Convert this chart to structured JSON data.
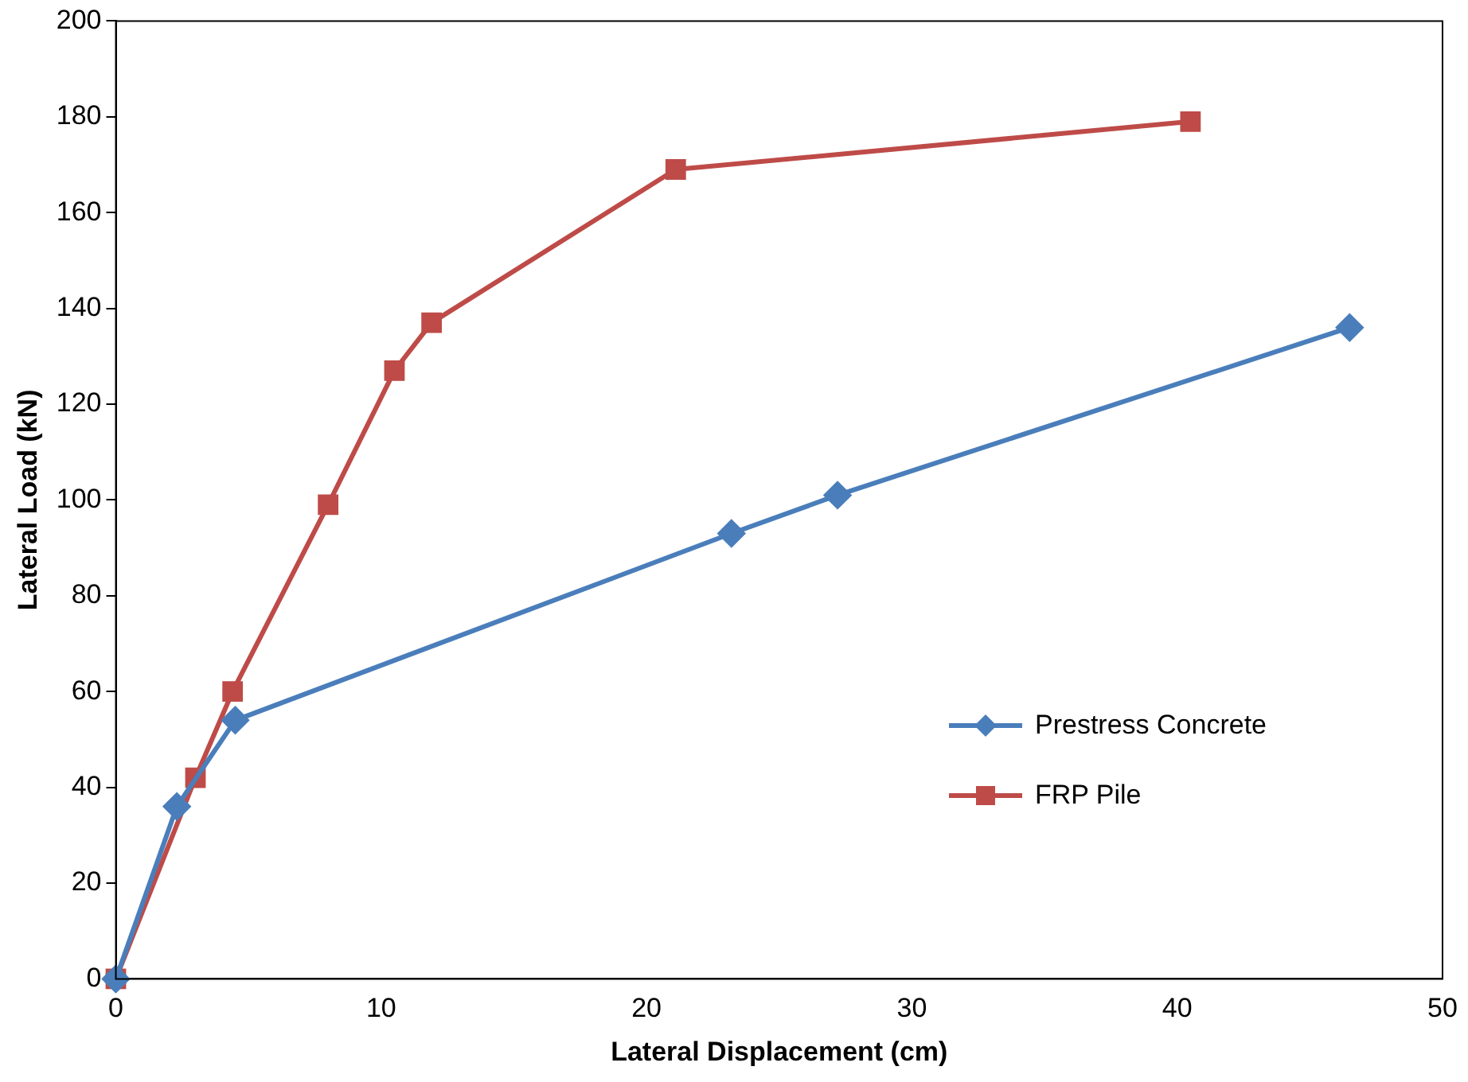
{
  "chart_data": {
    "type": "line",
    "xlabel": "Lateral Displacement (cm)",
    "ylabel": "Lateral Load (kN)",
    "xlim": [
      0,
      50
    ],
    "xticks": [
      0,
      10,
      20,
      30,
      40,
      50
    ],
    "ylim": [
      0,
      200
    ],
    "yticks": [
      0,
      20,
      40,
      60,
      80,
      100,
      120,
      140,
      160,
      180,
      200
    ],
    "grid": false,
    "legend": "right",
    "line_style": "solid",
    "series": [
      {
        "name": "Prestress Concrete",
        "color": "#4a7ebb",
        "marker": "diamond",
        "x": [
          0,
          2.3,
          4.5,
          23.2,
          27.2,
          46.5
        ],
        "values": [
          0,
          36,
          54,
          93,
          101,
          136
        ]
      },
      {
        "name": "FRP Pile",
        "color": "#be4b48",
        "marker": "square",
        "x": [
          0,
          3,
          4.4,
          8,
          10.5,
          11.9,
          21.1,
          40.5
        ],
        "values": [
          0,
          42,
          60,
          99,
          127,
          137,
          169,
          179
        ]
      }
    ]
  }
}
